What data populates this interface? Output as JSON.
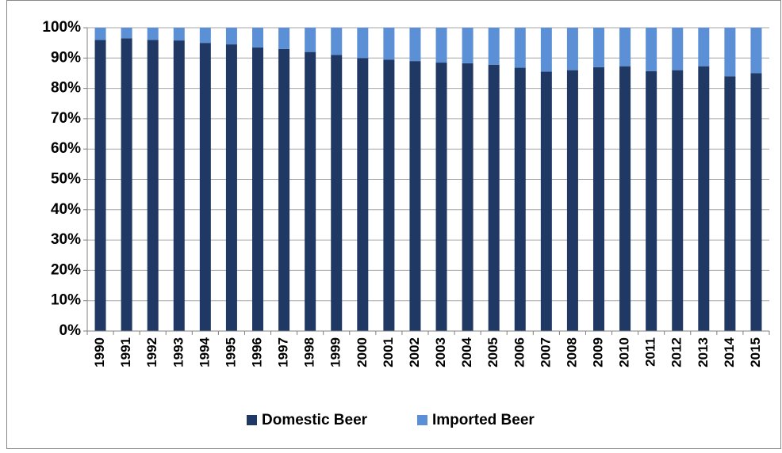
{
  "chart_data": {
    "type": "stacked_bar",
    "categories": [
      "1990",
      "1991",
      "1992",
      "1993",
      "1994",
      "1995",
      "1996",
      "1997",
      "1998",
      "1999",
      "2000",
      "2001",
      "2002",
      "2003",
      "2004",
      "2005",
      "2006",
      "2007",
      "2008",
      "2009",
      "2010",
      "2011",
      "2012",
      "2013",
      "2014",
      "2015"
    ],
    "series": [
      {
        "name": "Domestic Beer",
        "color": "#1f3864",
        "values": [
          96,
          96.5,
          96,
          95.8,
          95,
          94.5,
          93.5,
          93,
          92,
          91,
          90,
          89.5,
          89,
          88.5,
          88.3,
          87.8,
          86.8,
          85.5,
          86,
          87,
          87.3,
          85.7,
          86,
          87.3,
          84,
          85
        ]
      },
      {
        "name": "Imported Beer",
        "color": "#5b8fd6",
        "values": [
          4,
          3.5,
          4,
          4.2,
          5,
          5.5,
          6.5,
          7,
          8,
          9,
          10,
          10.5,
          11,
          11.5,
          11.7,
          12.2,
          13.2,
          14.5,
          14,
          13,
          12.7,
          14.3,
          14,
          12.7,
          16,
          15
        ]
      }
    ],
    "ylim": [
      0,
      100
    ],
    "yticks": [
      {
        "value": 0,
        "label": "0%"
      },
      {
        "value": 10,
        "label": "10%"
      },
      {
        "value": 20,
        "label": "20%"
      },
      {
        "value": 30,
        "label": "30%"
      },
      {
        "value": 40,
        "label": "40%"
      },
      {
        "value": 50,
        "label": "50%"
      },
      {
        "value": 60,
        "label": "60%"
      },
      {
        "value": 70,
        "label": "70%"
      },
      {
        "value": 80,
        "label": "80%"
      },
      {
        "value": 90,
        "label": "90%"
      },
      {
        "value": 100,
        "label": "100%"
      }
    ],
    "grid": true,
    "legend": "bottom"
  }
}
